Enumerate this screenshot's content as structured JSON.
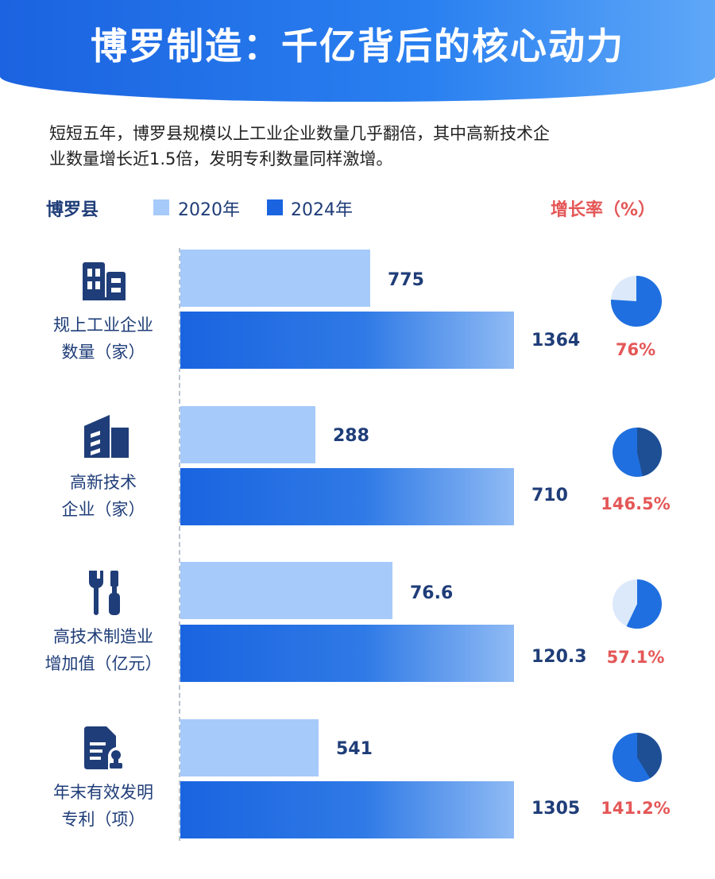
{
  "header": {
    "title": "博罗制造：千亿背后的核心动力"
  },
  "intro": {
    "line1": "短短五年，博罗县规模以上工业企业数量几乎翻倍，其中高新技术企",
    "line2": "业数量增长近1.5倍，发明专利数量同样激增。"
  },
  "legend": {
    "region": "博罗县",
    "series_2020": "2020年",
    "series_2024": "2024年",
    "growth_header": "增长率（%）"
  },
  "colors": {
    "header": "#1b63e0",
    "bar_2020": "#a6cafa",
    "bar_2024": "#1a64e0",
    "text_dark": "#1f3d78",
    "growth_red": "#e45757",
    "pie_light": "#dbe9fb",
    "pie_blue": "#1f6fe0",
    "pie_navy": "#1e4f94"
  },
  "categories": [
    {
      "icon": "building-icon",
      "label_line1": "规上工业企业",
      "label_line2": "数量（家）",
      "value_2020": "775",
      "value_2024": "1364",
      "growth": "76%"
    },
    {
      "icon": "hitech-building-icon",
      "label_line1": "高新技术",
      "label_line2": "企业（家）",
      "value_2020": "288",
      "value_2024": "710",
      "growth": "146.5%"
    },
    {
      "icon": "tools-icon",
      "label_line1": "高技术制造业",
      "label_line2": "增加值（亿元）",
      "value_2020": "76.6",
      "value_2024": "120.3",
      "growth": "57.1%"
    },
    {
      "icon": "patent-document-icon",
      "label_line1": "年末有效发明",
      "label_line2": "专利（项）",
      "value_2020": "541",
      "value_2024": "1305",
      "growth": "141.2%"
    }
  ],
  "chart_data": {
    "type": "bar",
    "orientation": "horizontal",
    "categories": [
      "规上工业企业数量（家）",
      "高新技术企业（家）",
      "高技术制造业增加值（亿元）",
      "年末有效发明专利（项）"
    ],
    "series": [
      {
        "name": "2020年",
        "values": [
          775,
          288,
          76.6,
          541
        ]
      },
      {
        "name": "2024年",
        "values": [
          1364,
          710,
          120.3,
          1305
        ]
      }
    ],
    "growth_rate_percent": [
      76,
      146.5,
      57.1,
      141.2
    ],
    "growth_display": "pie",
    "xlabel": "",
    "ylabel": "",
    "legend": "top",
    "grid": false
  }
}
